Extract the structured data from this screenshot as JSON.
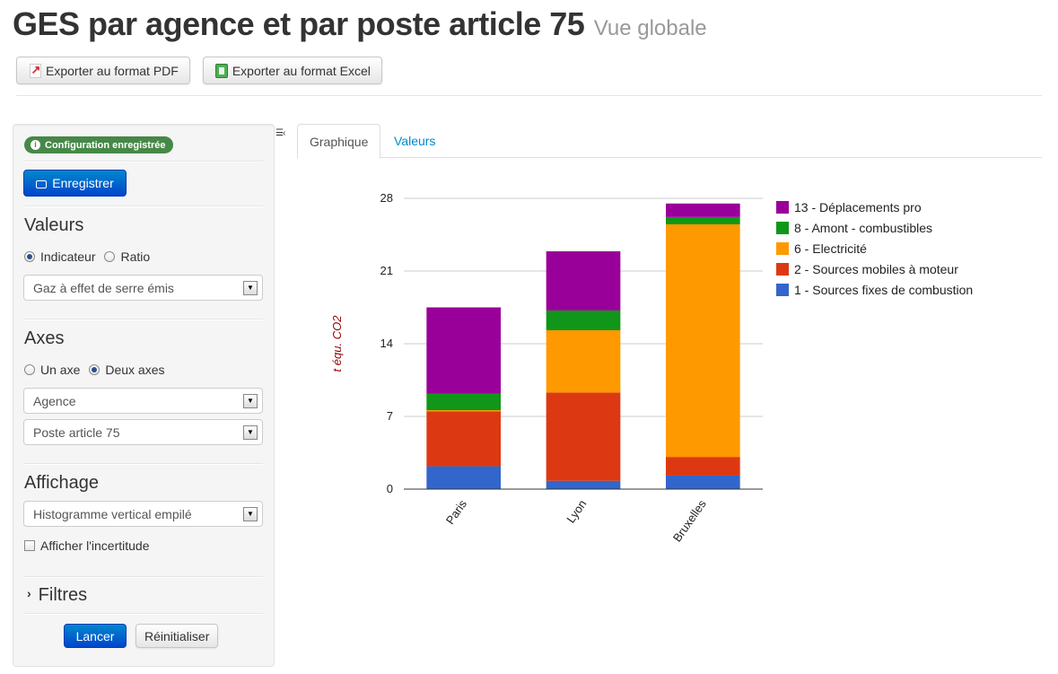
{
  "header": {
    "title": "GES par agence et par poste article 75",
    "subtitle": "Vue globale"
  },
  "toolbar": {
    "export_pdf_label": "Exporter au format PDF",
    "export_excel_label": "Exporter au format Excel"
  },
  "sidebar": {
    "status_badge": "Configuration enregistrée",
    "save_label": "Enregistrer",
    "values_section": {
      "title": "Valeurs",
      "options": [
        "Indicateur",
        "Ratio"
      ],
      "selected": "Indicateur",
      "select_value": "Gaz à effet de serre émis"
    },
    "axes_section": {
      "title": "Axes",
      "options": [
        "Un axe",
        "Deux axes"
      ],
      "selected": "Deux axes",
      "axis1_value": "Agence",
      "axis2_value": "Poste article 75"
    },
    "display_section": {
      "title": "Affichage",
      "select_value": "Histogramme vertical empilé",
      "uncertainty_label": "Afficher l'incertitude",
      "uncertainty_checked": false
    },
    "filters_label": "Filtres",
    "run_label": "Lancer",
    "reset_label": "Réinitialiser"
  },
  "tabs": {
    "chart": "Graphique",
    "values": "Valeurs",
    "active": "Graphique"
  },
  "chart_data": {
    "type": "bar",
    "stacked": true,
    "categories": [
      "Paris",
      "Lyon",
      "Bruxelles"
    ],
    "ylabel": "t équ. CO2",
    "ylim": [
      0,
      28
    ],
    "yticks": [
      0,
      7,
      14,
      21,
      28
    ],
    "grid": true,
    "legend_position": "right",
    "series": [
      {
        "name": "1 - Sources fixes de combustion",
        "color": "#3366cc",
        "values": [
          2.2,
          0.8,
          1.3
        ]
      },
      {
        "name": "2 - Sources mobiles à moteur",
        "color": "#dc3912",
        "values": [
          5.3,
          8.5,
          1.8
        ]
      },
      {
        "name": "6 - Electricité",
        "color": "#ff9900",
        "values": [
          0.1,
          6.0,
          22.4
        ]
      },
      {
        "name": "8 - Amont - combustibles",
        "color": "#109618",
        "values": [
          1.6,
          1.9,
          0.7
        ]
      },
      {
        "name": "13 - Déplacements pro",
        "color": "#990099",
        "values": [
          8.3,
          5.7,
          1.3
        ]
      }
    ]
  }
}
